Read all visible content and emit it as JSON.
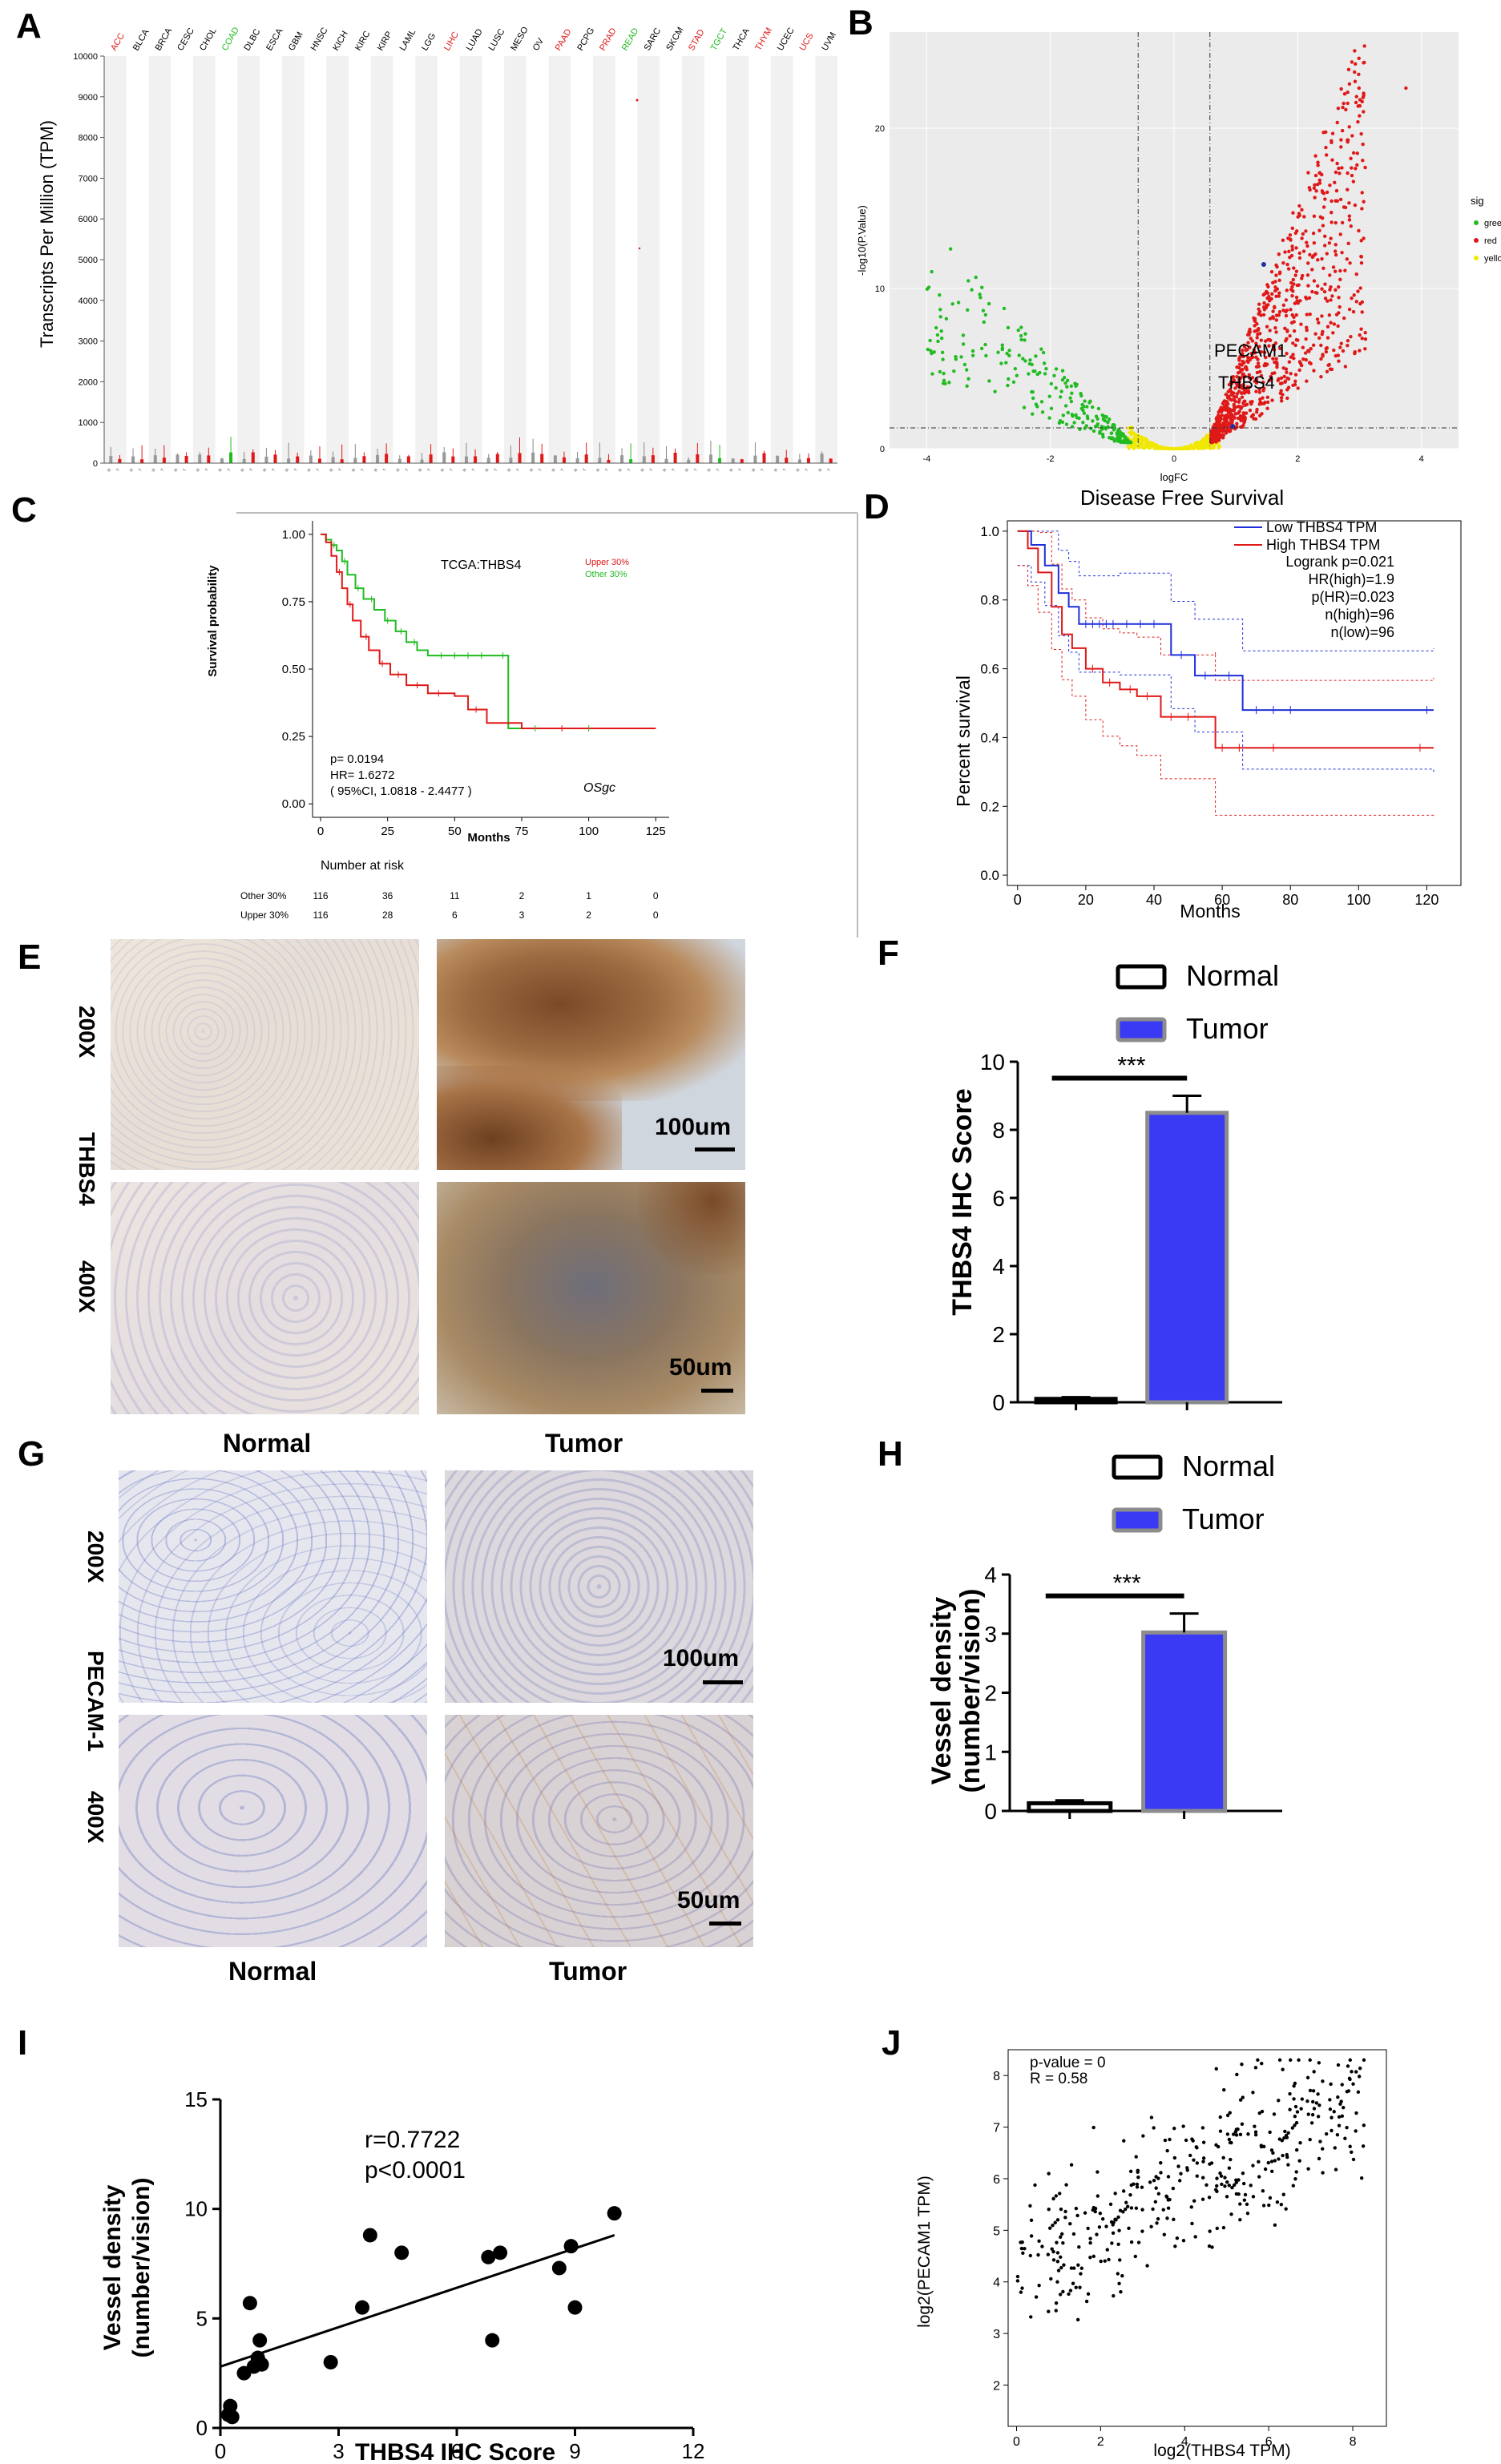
{
  "panels": {
    "A": "A",
    "B": "B",
    "C": "C",
    "D": "D",
    "E": "E",
    "F": "F",
    "G": "G",
    "H": "H",
    "I": "I",
    "J": "J"
  },
  "colors": {
    "green": "#22bb22",
    "red": "#e01818",
    "yellow": "#f0e800",
    "blue": "#1f2fd8",
    "bar_fill": "#3a3af5",
    "bar_edge": "#8c8c8c"
  },
  "panel_A": {
    "ylabel": "Transcripts Per Million (TPM)",
    "yticks": [
      "0",
      "1000",
      "2000",
      "3000",
      "4000",
      "5000",
      "6000",
      "7000",
      "8000",
      "9000",
      "10000"
    ],
    "cancers": [
      {
        "name": "ACC",
        "color": "red"
      },
      {
        "name": "BLCA",
        "color": "black"
      },
      {
        "name": "BRCA",
        "color": "black"
      },
      {
        "name": "CESC",
        "color": "black"
      },
      {
        "name": "CHOL",
        "color": "black"
      },
      {
        "name": "COAD",
        "color": "green"
      },
      {
        "name": "DLBC",
        "color": "black"
      },
      {
        "name": "ESCA",
        "color": "black"
      },
      {
        "name": "GBM",
        "color": "black"
      },
      {
        "name": "HNSC",
        "color": "black"
      },
      {
        "name": "KICH",
        "color": "black"
      },
      {
        "name": "KIRC",
        "color": "black"
      },
      {
        "name": "KIRP",
        "color": "black"
      },
      {
        "name": "LAML",
        "color": "black"
      },
      {
        "name": "LGG",
        "color": "black"
      },
      {
        "name": "LIHC",
        "color": "red"
      },
      {
        "name": "LUAD",
        "color": "black"
      },
      {
        "name": "LUSC",
        "color": "black"
      },
      {
        "name": "MESO",
        "color": "black"
      },
      {
        "name": "OV",
        "color": "black"
      },
      {
        "name": "PAAD",
        "color": "red"
      },
      {
        "name": "PCPG",
        "color": "black"
      },
      {
        "name": "PRAD",
        "color": "red"
      },
      {
        "name": "READ",
        "color": "green"
      },
      {
        "name": "SARC",
        "color": "black"
      },
      {
        "name": "SKCM",
        "color": "black"
      },
      {
        "name": "STAD",
        "color": "red"
      },
      {
        "name": "TGCT",
        "color": "green"
      },
      {
        "name": "THCA",
        "color": "black"
      },
      {
        "name": "THYM",
        "color": "red"
      },
      {
        "name": "UCEC",
        "color": "black"
      },
      {
        "name": "UCS",
        "color": "red"
      },
      {
        "name": "UVM",
        "color": "black"
      }
    ]
  },
  "panel_B": {
    "xlabel": "logFC",
    "ylabel": "-log10(P.Value)",
    "xticks": [
      "-4",
      "-2",
      "0",
      "2",
      "4"
    ],
    "yticks": [
      "0",
      "10",
      "20"
    ],
    "legend_title": "sig",
    "legend": [
      "green",
      "red",
      "yellow"
    ],
    "annotations": [
      "PECAM1",
      "THBS4"
    ]
  },
  "panel_C": {
    "title": "TCGA:THBS4",
    "legend": [
      "Upper 30%",
      "Other 30%"
    ],
    "ylabel": "Survival probability",
    "xlabel": "Months",
    "yticks": [
      "0.00",
      "0.25",
      "0.50",
      "0.75",
      "1.00"
    ],
    "xticks": [
      "0",
      "25",
      "50",
      "75",
      "100",
      "125"
    ],
    "stats": [
      "p= 0.0194",
      "HR= 1.6272",
      "( 95%CI, 1.0818 - 2.4477 )"
    ],
    "source": "OSgc",
    "risk_title": "Number at risk",
    "risk_rows": [
      {
        "label": "Other 30%",
        "values": [
          "116",
          "36",
          "11",
          "2",
          "1",
          "0"
        ]
      },
      {
        "label": "Upper 30%",
        "values": [
          "116",
          "28",
          "6",
          "3",
          "2",
          "0"
        ]
      }
    ]
  },
  "panel_D": {
    "title": "Disease Free Survival",
    "ylabel": "Percent survival",
    "xlabel": "Months",
    "yticks": [
      "0.0",
      "0.2",
      "0.4",
      "0.6",
      "0.8",
      "1.0"
    ],
    "xticks": [
      "0",
      "20",
      "40",
      "60",
      "80",
      "100",
      "120"
    ],
    "legend": [
      "Low THBS4 TPM",
      "High THBS4 TPM"
    ],
    "stats": [
      "Logrank p=0.021",
      "HR(high)=1.9",
      "p(HR)=0.023",
      "n(high)=96",
      "n(low)=96"
    ]
  },
  "panel_E": {
    "mag_top": "200X",
    "gene": "THBS4",
    "mag_bottom": "400X",
    "scale_top": "100um",
    "scale_bottom": "50um",
    "col_normal": "Normal",
    "col_tumor": "Tumor"
  },
  "panel_G": {
    "mag_top": "200X",
    "gene": "PECAM-1",
    "mag_bottom": "400X",
    "scale_top": "100um",
    "scale_bottom": "50um",
    "col_normal": "Normal",
    "col_tumor": "Tumor"
  },
  "chart_data": [
    {
      "type": "bar",
      "panel": "F",
      "categories": [
        "Normal",
        "Tumor"
      ],
      "values": [
        0.1,
        8.5
      ],
      "errors": [
        0.05,
        0.5
      ],
      "ylabel": "THBS4 IHC Score",
      "ylim": [
        0,
        10
      ],
      "yticks": [
        "0",
        "2",
        "4",
        "6",
        "8",
        "10"
      ],
      "legend": [
        "Normal",
        "Tumor"
      ],
      "significance": "***"
    },
    {
      "type": "bar",
      "panel": "H",
      "categories": [
        "Normal",
        "Tumor"
      ],
      "values": [
        0.13,
        3.02
      ],
      "errors": [
        0.05,
        0.32
      ],
      "ylabel": "Vessel density (number/vision)",
      "ylabel_lines": [
        "Vessel density",
        "(number/vision)"
      ],
      "ylim": [
        0,
        4
      ],
      "yticks": [
        "0",
        "1",
        "2",
        "3",
        "4"
      ],
      "legend": [
        "Normal",
        "Tumor"
      ],
      "significance": "***"
    },
    {
      "type": "scatter",
      "panel": "I",
      "xlabel": "THBS4 IHC Score",
      "ylabel": "Vessel density (number/vision)",
      "ylabel_lines": [
        "Vessel density",
        "(number/vision)"
      ],
      "xlim": [
        0,
        12
      ],
      "ylim": [
        0,
        15
      ],
      "xticks": [
        "0",
        "3",
        "6",
        "9",
        "12"
      ],
      "yticks": [
        "0",
        "5",
        "10",
        "15"
      ],
      "annotation": [
        "r=0.7722",
        "p<0.0001"
      ],
      "x": [
        0.2,
        0.25,
        0.3,
        0.6,
        0.75,
        0.85,
        0.95,
        1.0,
        1.05,
        2.8,
        3.6,
        3.8,
        4.6,
        6.8,
        6.9,
        7.1,
        8.6,
        8.9,
        9.0,
        10.0
      ],
      "y": [
        0.6,
        1.0,
        0.5,
        2.5,
        5.7,
        2.8,
        3.2,
        4.0,
        2.9,
        3.0,
        5.5,
        8.8,
        8.0,
        7.8,
        4.0,
        8.0,
        7.3,
        8.3,
        5.5,
        9.8
      ],
      "fit": {
        "x": [
          0,
          10
        ],
        "y": [
          2.8,
          8.8
        ]
      }
    },
    {
      "type": "scatter",
      "panel": "J",
      "xlabel": "log2(THBS4 TPM)",
      "ylabel": "log2(PECAM1 TPM)",
      "xlim": [
        -0.2,
        8.8
      ],
      "ylim": [
        1.2,
        8.5
      ],
      "xticks": [
        "0",
        "2",
        "4",
        "6",
        "8"
      ],
      "yticks": [
        "2",
        "3",
        "4",
        "5",
        "6",
        "7",
        "8"
      ],
      "annotation": [
        "p-value = 0",
        "R = 0.58"
      ]
    }
  ]
}
